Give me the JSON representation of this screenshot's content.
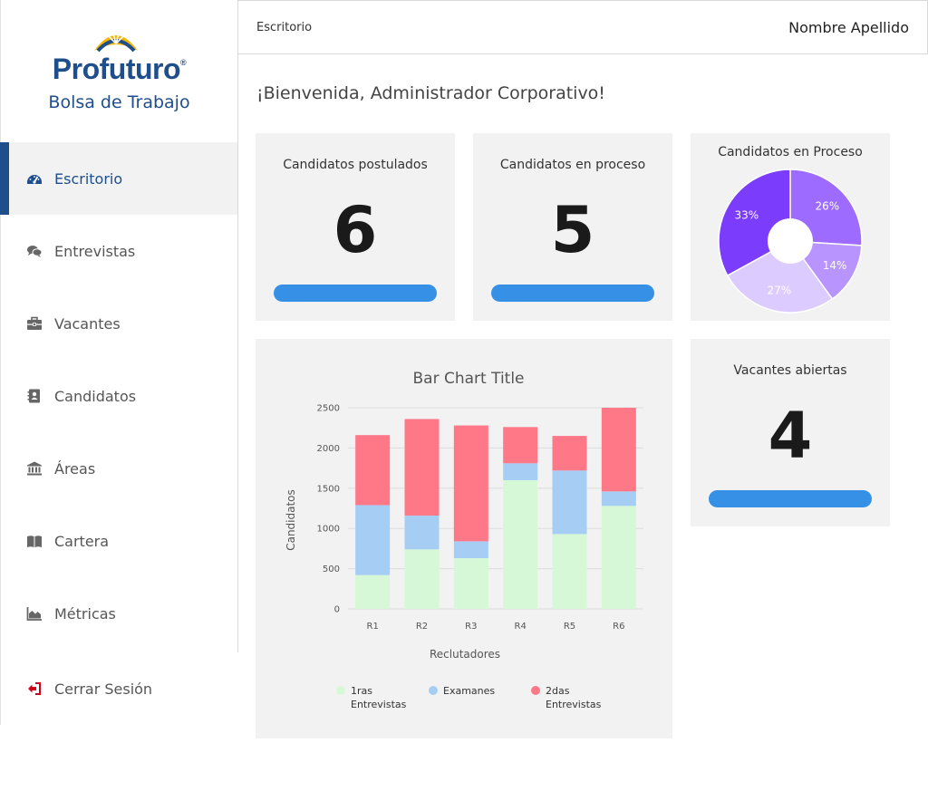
{
  "brand": {
    "name": "Profuturo",
    "registered": "®",
    "subtitle": "Bolsa de Trabajo"
  },
  "nav": {
    "items": [
      {
        "label": "Escritorio",
        "icon": "dashboard-icon"
      },
      {
        "label": "Entrevistas",
        "icon": "comments-icon"
      },
      {
        "label": "Vacantes",
        "icon": "briefcase-icon"
      },
      {
        "label": "Candidatos",
        "icon": "contact-card-icon"
      },
      {
        "label": "Áreas",
        "icon": "institution-icon"
      },
      {
        "label": "Cartera",
        "icon": "book-icon"
      },
      {
        "label": "Métricas",
        "icon": "area-chart-icon"
      }
    ],
    "logout": {
      "label": "Cerrar Sesión",
      "icon": "sign-out-icon"
    }
  },
  "header": {
    "breadcrumb": "Escritorio",
    "user_name": "Nombre Apellido"
  },
  "welcome": "¡Bienvenida, Administrador Corporativo!",
  "cards": {
    "postulados": {
      "title": "Candidatos postulados",
      "value": "6"
    },
    "proceso": {
      "title": "Candidatos en proceso",
      "value": "5"
    },
    "vacantes": {
      "title": "Vacantes abiertas",
      "value": "4"
    }
  },
  "colors": {
    "brand": "#1f4e8c",
    "progress": "#3590e6",
    "card_bg": "#f2f2f2",
    "logout_icon": "#d0021b"
  },
  "chart_data": [
    {
      "type": "pie",
      "title": "Candidatos en Proceso",
      "labels": [
        "26%",
        "14%",
        "27%",
        "33%"
      ],
      "values": [
        26,
        14,
        27,
        33
      ],
      "colors": [
        "#9d6bff",
        "#b894ff",
        "#dccbff",
        "#7b3cfb"
      ],
      "donut": true
    },
    {
      "type": "bar",
      "stacked": true,
      "title": "Bar Chart Title",
      "xlabel": "Reclutadores",
      "ylabel": "Candidatos",
      "categories": [
        "R1",
        "R2",
        "R3",
        "R4",
        "R5",
        "R6"
      ],
      "ylim": [
        0,
        2500
      ],
      "yticks": [
        "0",
        "500",
        "1000",
        "1500",
        "2000",
        "2500"
      ],
      "series": [
        {
          "name": "1ras Entrevistas",
          "color": "#d6f8d6",
          "values": [
            420,
            740,
            630,
            1600,
            930,
            1280
          ]
        },
        {
          "name": "Examanes",
          "color": "#a6cef5",
          "values": [
            870,
            420,
            210,
            210,
            790,
            180
          ]
        },
        {
          "name": "2das Entrevistas",
          "color": "#ff7888",
          "values": [
            870,
            1200,
            1440,
            450,
            430,
            1040
          ]
        }
      ],
      "legend_position": "bottom",
      "grid": true
    }
  ]
}
